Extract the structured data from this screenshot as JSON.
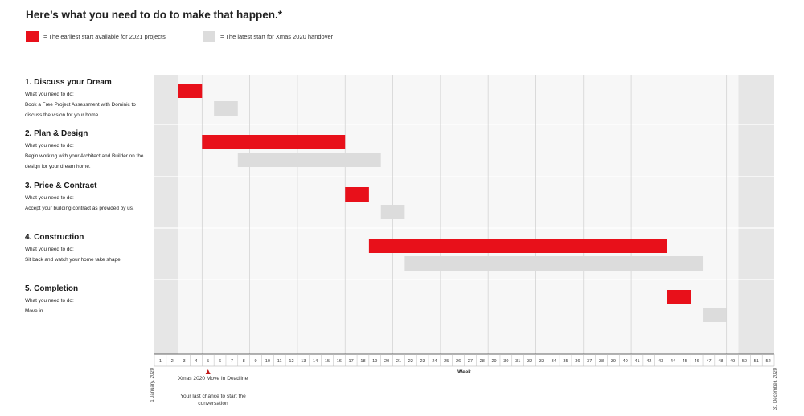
{
  "header": {
    "title": "Here’s what you need to do to make that happen.*"
  },
  "legend": {
    "earliest": {
      "label": "= The earliest start available for 2021 projects",
      "color": "#e8101a"
    },
    "latest": {
      "label": "= The latest start for Xmas 2020 handover",
      "color": "#dcdcdc"
    }
  },
  "phases": [
    {
      "title": "1. Discuss your Dream",
      "subtitle": "What you need to do:",
      "description": "Book a Free Project Assessment with Dominic to discuss the vision for your home."
    },
    {
      "title": "2. Plan & Design",
      "subtitle": "What you need to do:",
      "description": "Begin working with your Architect and Builder on the design for your dream home."
    },
    {
      "title": "3. Price & Contract",
      "subtitle": "What you need to do:",
      "description": "Accept your building contract as provided by us."
    },
    {
      "title": "4. Construction",
      "subtitle": "What you need to do:",
      "description": "Sit back and watch your home take shape."
    },
    {
      "title": "5. Completion",
      "subtitle": "What you need to do:",
      "description": "Move in."
    }
  ],
  "annotations": {
    "start_date": "1 January, 2020",
    "end_date": "31 December, 2020",
    "deadline": "Xmas 2020 Move In Deadline",
    "deadline_note": "Your last chance to start the conversation",
    "deadline_week": 5
  },
  "chart_data": {
    "type": "gantt",
    "xlabel": "Week",
    "weeks": [
      1,
      2,
      3,
      4,
      5,
      6,
      7,
      8,
      9,
      10,
      11,
      12,
      13,
      14,
      15,
      16,
      17,
      18,
      19,
      20,
      21,
      22,
      23,
      24,
      25,
      26,
      27,
      28,
      29,
      30,
      31,
      32,
      33,
      34,
      35,
      36,
      37,
      38,
      39,
      40,
      41,
      42,
      43,
      44,
      45,
      46,
      47,
      48,
      49,
      50,
      51,
      52
    ],
    "holiday_shading": [
      [
        1,
        2
      ],
      [
        50,
        52
      ]
    ],
    "series": [
      {
        "name": "The earliest start available for 2021 projects",
        "color": "#e8101a",
        "bars": [
          {
            "phase": "1. Discuss your Dream",
            "start_week": 3,
            "end_week": 4
          },
          {
            "phase": "2. Plan & Design",
            "start_week": 5,
            "end_week": 16
          },
          {
            "phase": "3. Price & Contract",
            "start_week": 17,
            "end_week": 18
          },
          {
            "phase": "4. Construction",
            "start_week": 19,
            "end_week": 43
          },
          {
            "phase": "5. Completion",
            "start_week": 44,
            "end_week": 45
          }
        ]
      },
      {
        "name": "The latest start for Xmas 2020 handover",
        "color": "#dcdcdc",
        "bars": [
          {
            "phase": "1. Discuss your Dream",
            "start_week": 6,
            "end_week": 7
          },
          {
            "phase": "2. Plan & Design",
            "start_week": 8,
            "end_week": 19
          },
          {
            "phase": "3. Price & Contract",
            "start_week": 20,
            "end_week": 21
          },
          {
            "phase": "4. Construction",
            "start_week": 22,
            "end_week": 46
          },
          {
            "phase": "5. Completion",
            "start_week": 47,
            "end_week": 48
          }
        ]
      }
    ]
  }
}
